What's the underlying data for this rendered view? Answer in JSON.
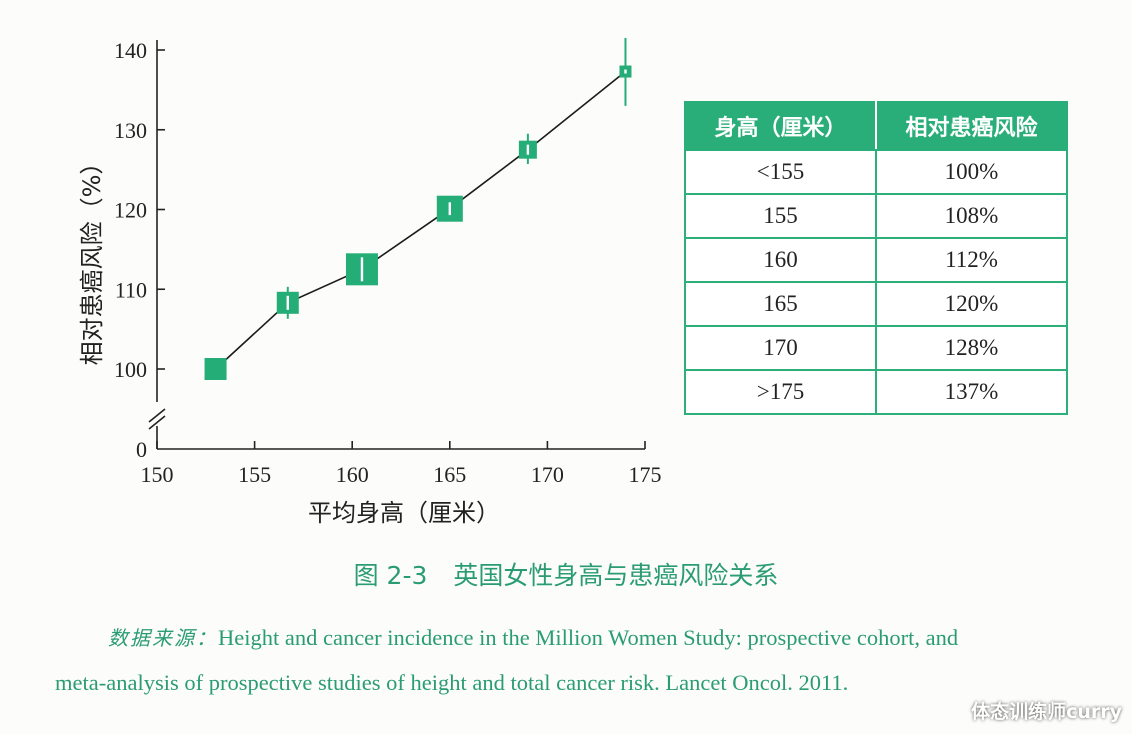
{
  "chart_data": {
    "type": "line",
    "x": [
      153,
      156.7,
      160.5,
      165,
      169,
      174
    ],
    "series": [
      {
        "values": [
          100,
          108.3,
          112.5,
          120.1,
          127.5,
          137.3
        ],
        "error_low": [
          100,
          106.3,
          110.7,
          119.3,
          125.7,
          133
        ],
        "error_high": [
          100,
          110.3,
          114.3,
          120.9,
          129.5,
          141.5
        ]
      }
    ],
    "xlabel": "平均身高（厘米）",
    "ylabel": "相对患癌风险（%）",
    "x_ticks": [
      "150",
      "155",
      "160",
      "165",
      "170",
      "175"
    ],
    "y_ticks": [
      "0",
      "100",
      "110",
      "120",
      "130",
      "140"
    ],
    "xlim": [
      150,
      175
    ],
    "ylim": [
      0,
      140
    ],
    "y_axis_break": [
      0,
      100
    ],
    "grid": false,
    "colors": {
      "marker": "#24ad77",
      "line": "#1b1b1b"
    }
  },
  "table": {
    "headers": [
      "身高（厘米）",
      "相对患癌风险"
    ],
    "rows": [
      [
        "<155",
        "100%"
      ],
      [
        "155",
        "108%"
      ],
      [
        "160",
        "112%"
      ],
      [
        "165",
        "120%"
      ],
      [
        "170",
        "128%"
      ],
      [
        ">175",
        "137%"
      ]
    ],
    "colors": {
      "header_bg": "#2aae79",
      "border": "#2daf79"
    }
  },
  "caption": {
    "number": "图 2-3",
    "text": "英国女性身高与患癌风险关系"
  },
  "source": {
    "label": "数据来源：",
    "line1": "Height and cancer incidence in the Million Women Study: prospective cohort, and",
    "line2": "meta-analysis of prospective studies of height and total cancer risk. Lancet Oncol. 2011."
  },
  "watermark": "体态训练师curry"
}
